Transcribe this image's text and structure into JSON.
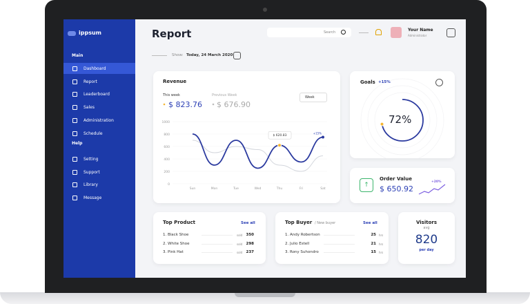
{
  "sidebar": {
    "brand": "ippsum",
    "sections": [
      {
        "title": "Main",
        "items": [
          "Dashboard",
          "Report",
          "Leaderboard",
          "Sales",
          "Administration",
          "Schedule"
        ]
      },
      {
        "title": "Help",
        "items": [
          "Setting",
          "Support",
          "Library",
          "Message"
        ]
      }
    ]
  },
  "header": {
    "title": "Report",
    "search": "Search",
    "user_name": "Your Name",
    "user_role": "Administrator",
    "show_label": "Show:",
    "date": "Today, 24 March 2020"
  },
  "revenue": {
    "title": "Revenue",
    "this_week_label": "This week",
    "this_week": "$ 823.76",
    "previous_week_label": "Previous Week",
    "previous_week": "$ 676.90",
    "period": "Week",
    "tooltip": "$ 620.83",
    "change": "+15%",
    "categories": [
      "Sun",
      "Mon",
      "Tue",
      "Wed",
      "Thu",
      "Fri",
      "Sat"
    ],
    "series": [
      {
        "color": "#2b3a9f",
        "values": [
          800,
          300,
          700,
          250,
          620,
          350,
          750
        ]
      },
      {
        "color": "#d3d6dc",
        "values": [
          700,
          500,
          600,
          550,
          300,
          200,
          450
        ]
      }
    ],
    "ylim": [
      0,
      1000
    ],
    "yticks": [
      0,
      200,
      400,
      600,
      800,
      1000
    ]
  },
  "goals": {
    "title": "Goals",
    "change": "+15%",
    "value": 72,
    "value_label": "72%"
  },
  "order_value": {
    "title": "Order Value",
    "amount": "$ 650.92",
    "change": "+20%"
  },
  "top_product": {
    "title": "Top Product",
    "link": "See all",
    "unit": "sold",
    "rows": [
      [
        "1. Black Shoe",
        "350"
      ],
      [
        "2. White Shoe",
        "298"
      ],
      [
        "3. Pink Hat",
        "237"
      ]
    ]
  },
  "top_buyer": {
    "title": "Top Buyer",
    "subtitle": "/ New buyer",
    "link": "See all",
    "unit": "hrs",
    "rows": [
      [
        "1. Andy Robertson",
        "25"
      ],
      [
        "2. Julio Estell",
        "21"
      ],
      [
        "3. Rony Suhondro",
        "15"
      ]
    ]
  },
  "visitors": {
    "title": "Visitors",
    "subtitle": "avg",
    "value": "820",
    "period": "per day"
  }
}
